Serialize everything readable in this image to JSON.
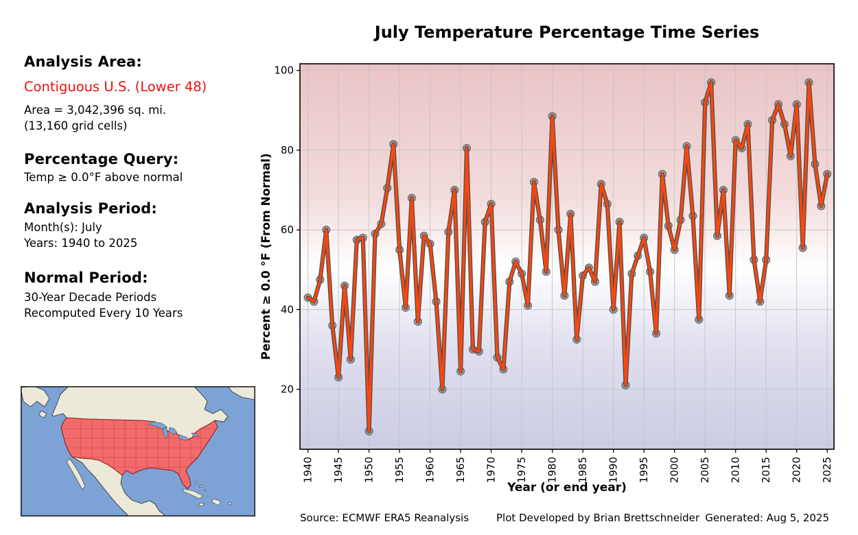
{
  "sidebar": {
    "analysis_area_heading": "Analysis Area:",
    "analysis_area_value": "Contiguous U.S. (Lower 48)",
    "area_line1": "Area = 3,042,396 sq. mi.",
    "area_line2": "(13,160 grid cells)",
    "percentage_query_heading": "Percentage Query:",
    "percentage_query_value": "Temp ≥ 0.0°F above normal",
    "analysis_period_heading": "Analysis Period:",
    "analysis_period_month": "Month(s): July",
    "analysis_period_years": "Years: 1940 to 2025",
    "normal_period_heading": "Normal Period:",
    "normal_period_line1": "30-Year Decade Periods",
    "normal_period_line2": "Recomputed Every 10 Years",
    "accent_color": "#ee1010"
  },
  "footer": {
    "source": "Source: ECMWF ERA5 Reanalysis",
    "developer": "Plot Developed by Brian Brettschneider",
    "generated": "Generated: Aug 5, 2025"
  },
  "map": {
    "region_label": "Contiguous U.S. (Lower 48)",
    "colors": {
      "ocean": "#7da3d6",
      "land": "#ece9d8",
      "land_border": "#333333",
      "highlight": "#f26b6b",
      "highlight_border": "#8b1a1a",
      "state_border": "#c23b3b",
      "frame": "#222222"
    }
  },
  "chart_data": {
    "type": "line",
    "title": "July Temperature Percentage Time Series",
    "xlabel": "Year (or end year)",
    "ylabel": "Percent ≥ 0.0 °F (From Normal)",
    "legend": null,
    "grid": true,
    "xlim": [
      1938.7,
      2026.1
    ],
    "ylim": [
      4.95,
      101.67
    ],
    "xticks": [
      1940,
      1945,
      1950,
      1955,
      1960,
      1965,
      1970,
      1975,
      1980,
      1985,
      1990,
      1995,
      2000,
      2005,
      2010,
      2015,
      2020,
      2025
    ],
    "yticks": [
      20,
      40,
      60,
      80,
      100
    ],
    "line_color": "#f8470e",
    "line_outline_color": "#4f4f4f",
    "marker_color": "#a0a0a0",
    "marker_edge_color": "#6e6e6e",
    "bg_gradient_stops": [
      {
        "offset": "0%",
        "color": "#e9c4c5"
      },
      {
        "offset": "35%",
        "color": "#f3dcdc"
      },
      {
        "offset": "53%",
        "color": "#ffffff"
      },
      {
        "offset": "74%",
        "color": "#dfdfee"
      },
      {
        "offset": "100%",
        "color": "#cbcbe4"
      }
    ],
    "years": [
      1940,
      1941,
      1942,
      1943,
      1944,
      1945,
      1946,
      1947,
      1948,
      1949,
      1950,
      1951,
      1952,
      1953,
      1954,
      1955,
      1956,
      1957,
      1958,
      1959,
      1960,
      1961,
      1962,
      1963,
      1964,
      1965,
      1966,
      1967,
      1968,
      1969,
      1970,
      1971,
      1972,
      1973,
      1974,
      1975,
      1976,
      1977,
      1978,
      1979,
      1980,
      1981,
      1982,
      1983,
      1984,
      1985,
      1986,
      1987,
      1988,
      1989,
      1990,
      1991,
      1992,
      1993,
      1994,
      1995,
      1996,
      1997,
      1998,
      1999,
      2000,
      2001,
      2002,
      2003,
      2004,
      2005,
      2006,
      2007,
      2008,
      2009,
      2010,
      2011,
      2012,
      2013,
      2014,
      2015,
      2016,
      2017,
      2018,
      2019,
      2020,
      2021,
      2022,
      2023,
      2024,
      2025
    ],
    "values": [
      43,
      42,
      47.5,
      60,
      36,
      23,
      46,
      27.5,
      57.5,
      58,
      9.5,
      59,
      61.5,
      70.5,
      81.5,
      55,
      40.5,
      68,
      37,
      58.5,
      56.5,
      42,
      20,
      59.5,
      70,
      24.5,
      80.5,
      30,
      29.5,
      62,
      66.5,
      28,
      25,
      47,
      52,
      49,
      41,
      72,
      62.5,
      49.5,
      88.5,
      60,
      43.5,
      64,
      32.5,
      48.5,
      50.5,
      47,
      71.5,
      66.5,
      40,
      62,
      21,
      49,
      53.5,
      58,
      49.5,
      34,
      74,
      61,
      55,
      62.5,
      81,
      63.5,
      37.5,
      92,
      97,
      58.5,
      70,
      43.5,
      82.5,
      80.5,
      86.5,
      52.5,
      42,
      52.5,
      87.5,
      91.5,
      86.5,
      78.5,
      91.5,
      55.5,
      97,
      76.5,
      66,
      74
    ]
  }
}
